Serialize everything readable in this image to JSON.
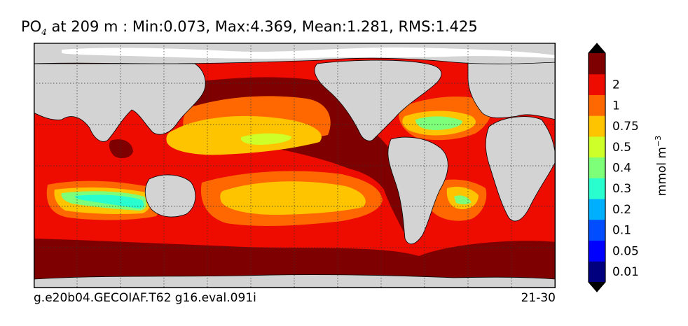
{
  "title": {
    "variable": "PO",
    "subscript": "4",
    "rest": "  at 209 m : Min:0.073, Max:4.369, Mean:1.281, RMS:1.425"
  },
  "footer": {
    "run_label": "g.e20b04.GECOIAF.T62 g16.eval.091i",
    "period_label": "21-30"
  },
  "colorbar": {
    "units_base": "mmol m",
    "units_exponent": "−3",
    "levels": [
      "0.01",
      "0.05",
      "0.1",
      "0.2",
      "0.3",
      "0.4",
      "0.5",
      "0.75",
      "1",
      "2"
    ],
    "colors": [
      "#00007f",
      "#0000ff",
      "#004cff",
      "#00b0ff",
      "#29ffce",
      "#7dff7a",
      "#ceff29",
      "#ffc400",
      "#ff6800",
      "#ee0b00",
      "#7f0000"
    ],
    "extend": "both"
  },
  "map": {
    "land_color": "#d3d3d3",
    "ice_color": "#ffffff",
    "gridlines": "dotted"
  }
}
